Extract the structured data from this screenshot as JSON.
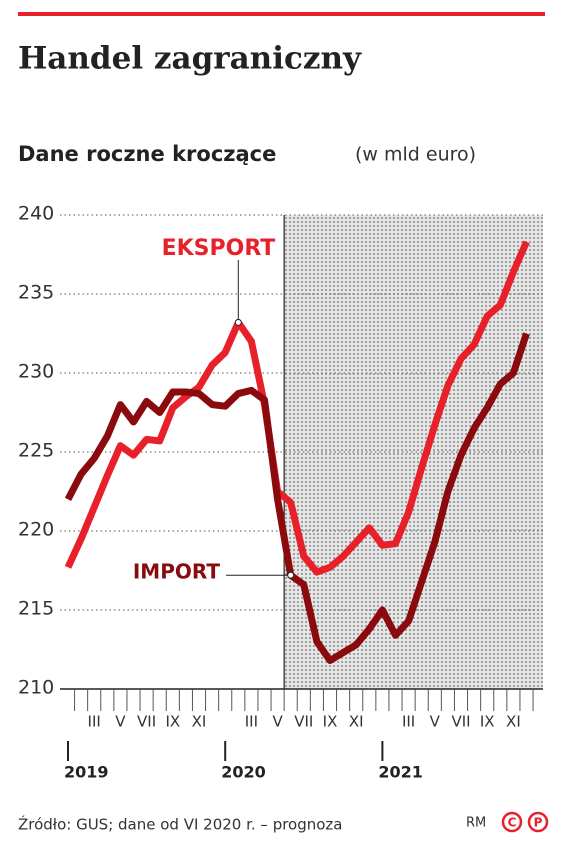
{
  "chart_data": {
    "type": "line",
    "title": "Handel zagraniczny",
    "subtitle": "Dane roczne kroczące",
    "unit": "(w mld euro)",
    "source": "Źródło: GUS; dane od VI 2020 r. – prognoza",
    "credit": "RM",
    "logo": [
      "C",
      "P"
    ],
    "categories": [
      null,
      null,
      "III",
      null,
      "V",
      null,
      "VII",
      null,
      "IX",
      null,
      "XI",
      null,
      null,
      null,
      "III",
      null,
      "V",
      null,
      "VII",
      null,
      "IX",
      null,
      "XI",
      null,
      null,
      null,
      "III",
      null,
      "V",
      null,
      "VII",
      null,
      "IX",
      null,
      "XI",
      null
    ],
    "category_groups": [
      "2019",
      "2020",
      "2021"
    ],
    "shaded_from_index": 17,
    "series": [
      {
        "name": "EKSPORT",
        "color": "#e8202a",
        "label_point": 13,
        "values": [
          217.7,
          219.5,
          221.5,
          223.5,
          225.4,
          224.8,
          225.8,
          225.7,
          227.8,
          228.5,
          229.1,
          230.5,
          231.3,
          233.2,
          232.0,
          228.0,
          222.5,
          221.8,
          218.4,
          217.4,
          217.7,
          218.4,
          219.3,
          220.2,
          219.1,
          219.2,
          221.2,
          224.0,
          226.7,
          229.2,
          230.9,
          231.8,
          233.6,
          234.3,
          236.4,
          238.3
        ]
      },
      {
        "name": "IMPORT",
        "color": "#8b0a0e",
        "label_point": 17,
        "values": [
          222.0,
          223.6,
          224.6,
          226.0,
          228.0,
          226.9,
          228.2,
          227.5,
          228.8,
          228.8,
          228.7,
          228.0,
          227.9,
          228.7,
          228.9,
          228.3,
          222.0,
          217.2,
          216.6,
          213.0,
          211.8,
          212.3,
          212.8,
          213.8,
          215.0,
          213.4,
          214.3,
          216.8,
          219.3,
          222.5,
          224.8,
          226.5,
          227.8,
          229.3,
          230.0,
          232.5
        ]
      }
    ],
    "ylim": [
      210,
      240
    ],
    "yticks": [
      210,
      215,
      220,
      225,
      230,
      235,
      240
    ],
    "grid": true
  }
}
